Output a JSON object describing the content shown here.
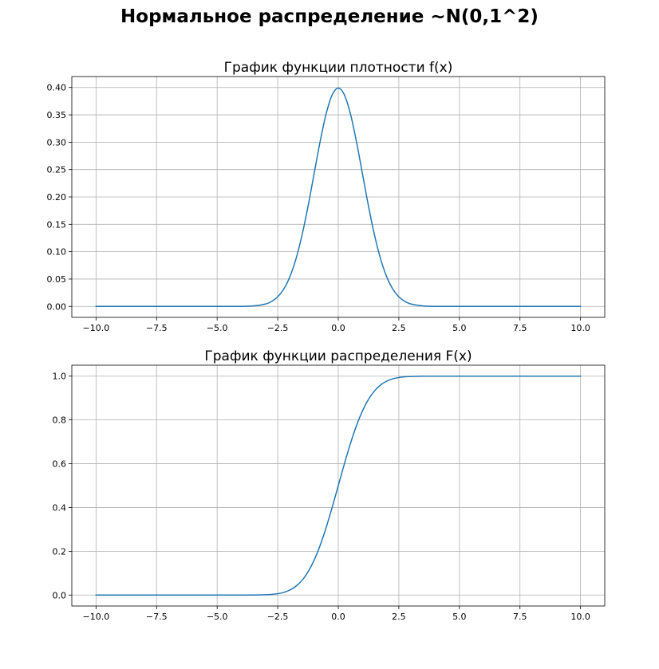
{
  "suptitle": "Нормальное распределение ~N(0,1^2)",
  "chart_data": [
    {
      "type": "line",
      "title": "График функции плотности f(x)",
      "xlabel": "",
      "ylabel": "",
      "xlim": [
        -11.0,
        11.0
      ],
      "ylim": [
        -0.02,
        0.42
      ],
      "x_ticks": [
        -10.0,
        -7.5,
        -5.0,
        -2.5,
        0.0,
        2.5,
        5.0,
        7.5,
        10.0
      ],
      "x_tick_labels": [
        "−10.0",
        "−7.5",
        "−5.0",
        "−2.5",
        "0.0",
        "2.5",
        "5.0",
        "7.5",
        "10.0"
      ],
      "y_ticks": [
        0.0,
        0.05,
        0.1,
        0.15,
        0.2,
        0.25,
        0.3,
        0.35,
        0.4
      ],
      "y_tick_labels": [
        "0.00",
        "0.05",
        "0.10",
        "0.15",
        "0.20",
        "0.25",
        "0.30",
        "0.35",
        "0.40"
      ],
      "grid": true,
      "line_color": "#1f77b4",
      "series": [
        {
          "x": [
            -10,
            -5,
            -4,
            -3.5,
            -3,
            -2.75,
            -2.5,
            -2.25,
            -2,
            -1.75,
            -1.5,
            -1.25,
            -1,
            -0.75,
            -0.5,
            -0.25,
            0,
            0.25,
            0.5,
            0.75,
            1,
            1.25,
            1.5,
            1.75,
            2,
            2.25,
            2.5,
            2.75,
            3,
            3.5,
            4,
            5,
            10
          ],
          "y": [
            0,
            0,
            0.0001,
            0.0009,
            0.0044,
            0.0091,
            0.0175,
            0.0317,
            0.054,
            0.0863,
            0.1295,
            0.1826,
            0.242,
            0.3011,
            0.3521,
            0.3867,
            0.3989,
            0.3867,
            0.3521,
            0.3011,
            0.242,
            0.1826,
            0.1295,
            0.0863,
            0.054,
            0.0317,
            0.0175,
            0.0091,
            0.0044,
            0.0009,
            0.0001,
            0,
            0
          ]
        }
      ]
    },
    {
      "type": "line",
      "title": "График функции распределения F(x)",
      "xlabel": "",
      "ylabel": "",
      "xlim": [
        -11.0,
        11.0
      ],
      "ylim": [
        -0.05,
        1.05
      ],
      "x_ticks": [
        -10.0,
        -7.5,
        -5.0,
        -2.5,
        0.0,
        2.5,
        5.0,
        7.5,
        10.0
      ],
      "x_tick_labels": [
        "−10.0",
        "−7.5",
        "−5.0",
        "−2.5",
        "0.0",
        "2.5",
        "5.0",
        "7.5",
        "10.0"
      ],
      "y_ticks": [
        0.0,
        0.2,
        0.4,
        0.6,
        0.8,
        1.0
      ],
      "y_tick_labels": [
        "0.0",
        "0.2",
        "0.4",
        "0.6",
        "0.8",
        "1.0"
      ],
      "grid": true,
      "line_color": "#1f77b4",
      "series": [
        {
          "x": [
            -10,
            -5,
            -4,
            -3.5,
            -3,
            -2.75,
            -2.5,
            -2.25,
            -2,
            -1.75,
            -1.5,
            -1.25,
            -1,
            -0.75,
            -0.5,
            -0.25,
            0,
            0.25,
            0.5,
            0.75,
            1,
            1.25,
            1.5,
            1.75,
            2,
            2.25,
            2.5,
            2.75,
            3,
            3.5,
            4,
            5,
            10
          ],
          "y": [
            0,
            0,
            0,
            0.0002,
            0.0013,
            0.003,
            0.0062,
            0.0122,
            0.0228,
            0.0401,
            0.0668,
            0.1056,
            0.1587,
            0.2266,
            0.3085,
            0.4013,
            0.5,
            0.5987,
            0.6915,
            0.7734,
            0.8413,
            0.8944,
            0.9332,
            0.9599,
            0.9772,
            0.9878,
            0.9938,
            0.997,
            0.9987,
            0.9998,
            1,
            1,
            1
          ]
        }
      ]
    }
  ]
}
